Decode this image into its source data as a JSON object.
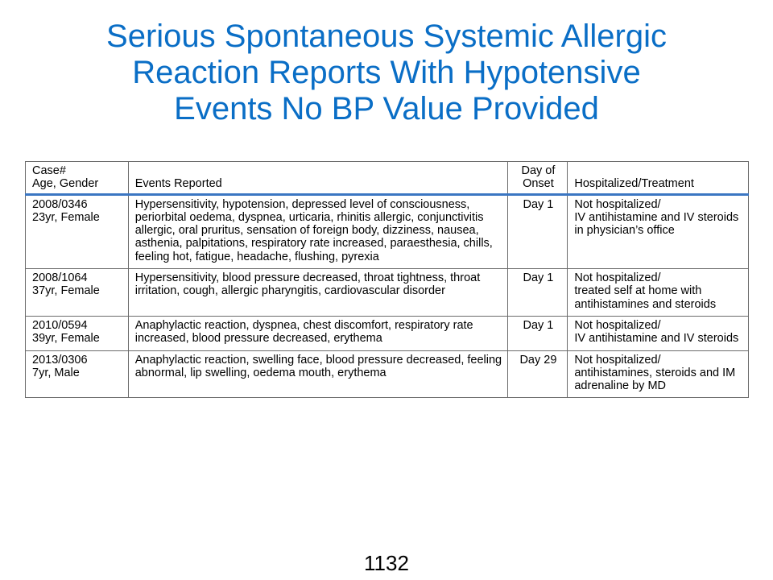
{
  "title": {
    "lines": [
      "Serious Spontaneous Systemic Allergic",
      "Reaction Reports With Hypotensive",
      "Events No BP Value Provided"
    ]
  },
  "table": {
    "headers": {
      "case": [
        "Case#",
        "Age, Gender"
      ],
      "events": "Events Reported",
      "day": [
        "Day of",
        "Onset"
      ],
      "hosp": "Hospitalized/Treatment"
    },
    "rows": [
      {
        "case": [
          "2008/0346",
          "23yr, Female"
        ],
        "events": "Hypersensitivity, hypotension, depressed level of consciousness, periorbital oedema, dyspnea, urticaria, rhinitis allergic, conjunctivitis allergic, oral pruritus, sensation of foreign body, dizziness, nausea, asthenia, palpitations, respiratory rate increased, paraesthesia, chills, feeling hot, fatigue, headache, flushing, pyrexia",
        "day": "Day 1",
        "hosp": [
          "Not hospitalized/",
          "IV antihistamine and IV steroids in physician’s office"
        ]
      },
      {
        "case": [
          "2008/1064",
          "37yr, Female"
        ],
        "events": "Hypersensitivity, blood pressure decreased, throat tightness, throat irritation, cough, allergic pharyngitis, cardiovascular disorder",
        "day": "Day 1",
        "hosp": [
          "Not hospitalized/",
          "treated self at home with antihistamines and steroids"
        ]
      },
      {
        "case": [
          "2010/0594",
          "39yr, Female"
        ],
        "events": "Anaphylactic reaction, dyspnea, chest discomfort, respiratory rate increased, blood pressure decreased, erythema",
        "day": "Day 1",
        "hosp": [
          "Not hospitalized/",
          "IV antihistamine and IV steroids"
        ]
      },
      {
        "case": [
          "2013/0306",
          "7yr, Male"
        ],
        "events": "Anaphylactic reaction, swelling face, blood pressure decreased, feeling abnormal, lip swelling, oedema mouth, erythema",
        "day": "Day 29",
        "hosp": [
          "Not hospitalized/",
          "antihistamines, steroids and IM adrenaline by MD"
        ]
      }
    ]
  },
  "footer": {
    "slide_number": "1132"
  }
}
